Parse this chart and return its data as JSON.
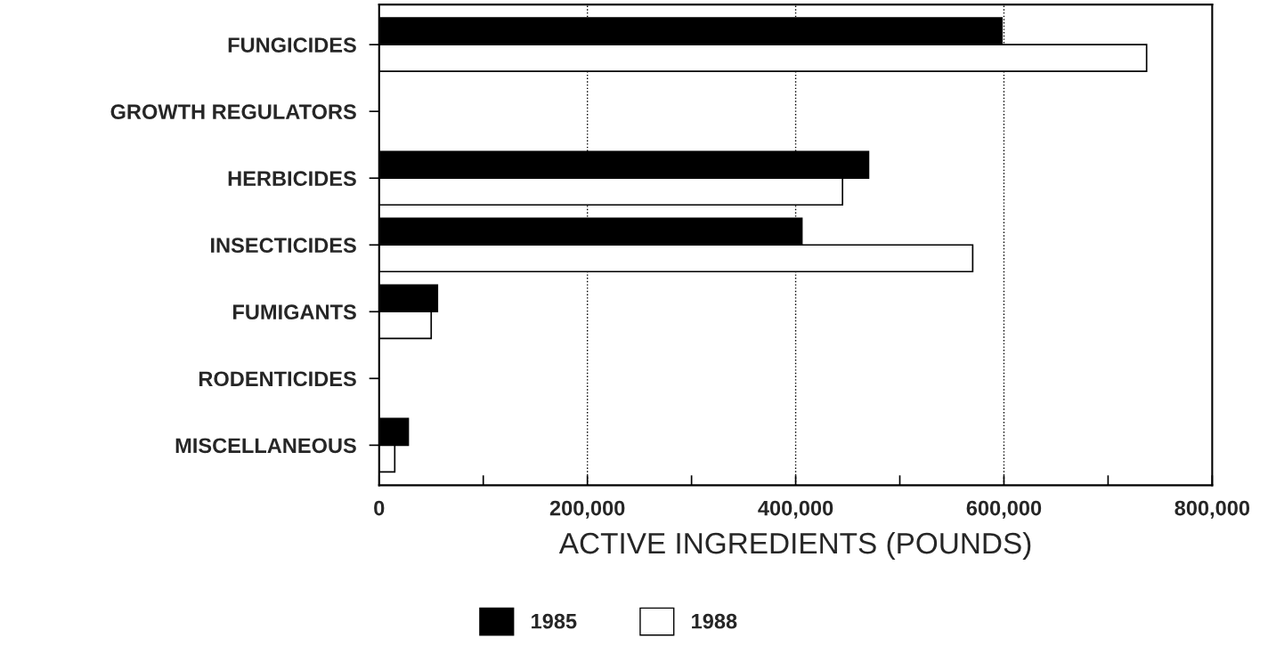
{
  "chart_data": {
    "type": "bar",
    "orientation": "horizontal",
    "xlabel": "ACTIVE INGREDIENTS (POUNDS)",
    "categories": [
      "FUNGICIDES",
      "GROWTH REGULATORS",
      "HERBICIDES",
      "INSECTICIDES",
      "FUMIGANTS",
      "RODENTICIDES",
      "MISCELLANEOUS"
    ],
    "series": [
      {
        "name": "1985",
        "color": "#000000",
        "values": [
          598000,
          null,
          470000,
          406000,
          56000,
          null,
          28000
        ]
      },
      {
        "name": "1988",
        "color": "#ffffff",
        "values": [
          737000,
          null,
          445000,
          570000,
          50000,
          null,
          15000
        ]
      }
    ],
    "xlim": [
      0,
      800000
    ],
    "xticks": [
      0,
      {
        "value": 100000,
        "label": null
      },
      {
        "value": 200000,
        "label": "200,000"
      },
      {
        "value": 300000,
        "label": null
      },
      {
        "value": 400000,
        "label": "400,000"
      },
      {
        "value": 500000,
        "label": null
      },
      {
        "value": 600000,
        "label": "600,000"
      },
      {
        "value": 700000,
        "label": null
      },
      {
        "value": 800000,
        "label": "800,000"
      }
    ],
    "grid": "x",
    "legend": "bottom"
  }
}
